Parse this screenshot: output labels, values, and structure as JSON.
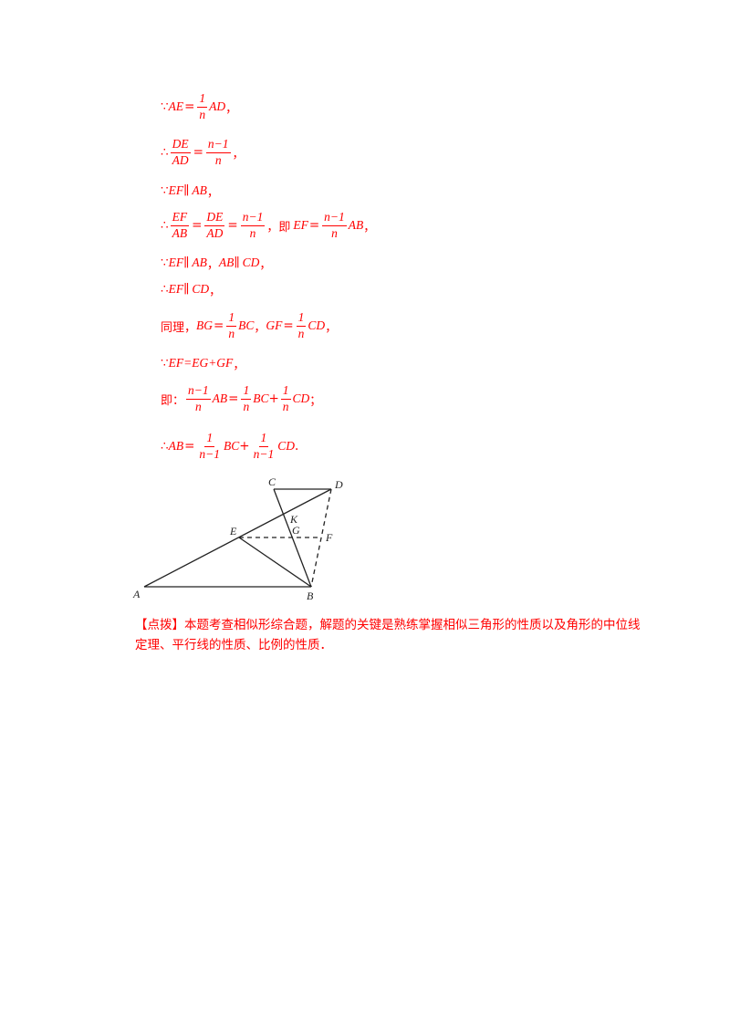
{
  "steps": {
    "s1": {
      "pre": "∵",
      "a": "AE",
      "eq": "=",
      "num": "1",
      "den": "n",
      "b": "AD",
      "end": "，"
    },
    "s2": {
      "pre": "∴",
      "n1": "DE",
      "d1": "AD",
      "eq": "=",
      "n2": "n−1",
      "d2": "n",
      "end": "，"
    },
    "s3": {
      "pre": "∵",
      "a": "EF",
      "par": "∥",
      "b": "AB",
      "end": "，"
    },
    "s4": {
      "pre": "∴",
      "n1": "EF",
      "d1": "AB",
      "eq1": "=",
      "n2": "DE",
      "d2": "AD",
      "eq2": "=",
      "n3": "n−1",
      "d3": "n",
      "mid": "，即",
      "a": "EF",
      "eq3": "=",
      "n4": "n−1",
      "d4": "n",
      "b": "AB",
      "end": "，"
    },
    "s5": {
      "pre": "∵",
      "a": "EF",
      "par1": "∥",
      "b": "AB",
      "sep": "，",
      "c": "AB",
      "par2": "∥",
      "d": "CD",
      "end": "，"
    },
    "s6": {
      "pre": "∴",
      "a": "EF",
      "par": "∥",
      "b": "CD",
      "end": "，"
    },
    "s7": {
      "pre": "同理，",
      "a": "BG",
      "eq1": "=",
      "n1": "1",
      "d1": "n",
      "b": "BC",
      "sep": "，",
      "c": "GF",
      "eq2": "=",
      "n2": "1",
      "d2": "n",
      "d": "CD",
      "end": "，"
    },
    "s8": {
      "pre": "∵",
      "expr": "EF=EG+GF",
      "end": "，"
    },
    "s9": {
      "pre": "即：",
      "n1": "n−1",
      "d1": "n",
      "a": "AB",
      "eq": "=",
      "n2": "1",
      "d2": "n",
      "b": "BC",
      "plus": "+",
      "n3": "1",
      "d3": "n",
      "c": "CD",
      "end": "；"
    },
    "s10": {
      "pre": "∴",
      "a": "AB",
      "eq": "=",
      "n1": "1",
      "d1": "n−1",
      "b": "BC",
      "plus": "+",
      "n2": "1",
      "d2": "n−1",
      "c": "CD",
      "end": "."
    }
  },
  "figure": {
    "labels": {
      "A": "A",
      "B": "B",
      "C": "C",
      "D": "D",
      "E": "E",
      "F": "F",
      "G": "G",
      "K": "K"
    },
    "line_color": "#222222"
  },
  "note": {
    "tag": "【点拨】",
    "text": "本题考查相似形综合题，解题的关键是熟练掌握相似三角形的性质以及角形的中位线定理、平行线的性质、比例的性质．"
  }
}
